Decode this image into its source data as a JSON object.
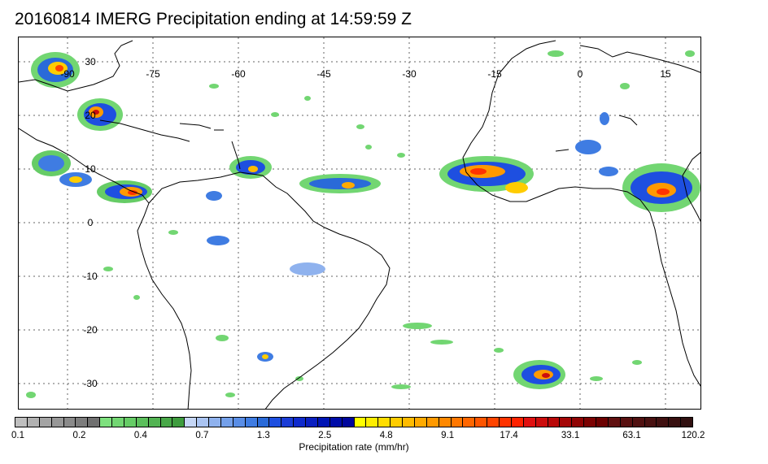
{
  "title": "20160814 IMERG Precipitation ending at 14:59:59 Z",
  "map": {
    "lon_labels": [
      "-90",
      "-75",
      "-60",
      "-45",
      "-30",
      "-15",
      "0",
      "15"
    ],
    "lon_values": [
      -90,
      -75,
      -60,
      -45,
      -30,
      -15,
      0,
      15
    ],
    "lat_labels": [
      "30",
      "20",
      "10",
      "0",
      "-10",
      "-20",
      "-30"
    ],
    "lat_values": [
      30,
      20,
      10,
      0,
      -10,
      -20,
      -30
    ],
    "grid": "dotted",
    "colors": {
      "land_outline": "#000000",
      "grid": "#666666"
    }
  },
  "colorbar": {
    "tick_labels": [
      "0.1",
      "0.2",
      "0.4",
      "0.7",
      "1.3",
      "2.5",
      "4.8",
      "9.1",
      "17.4",
      "33.1",
      "63.1",
      "120.2"
    ],
    "label": "Precipitation rate (mm/hr)",
    "colors": [
      "#bfbfbf",
      "#b1b1b1",
      "#a4a4a4",
      "#979797",
      "#8a8a8a",
      "#7d7d7d",
      "#707070",
      "#7ee07e",
      "#72d672",
      "#66cc66",
      "#5cbf5c",
      "#52b352",
      "#48a848",
      "#3e9c3e",
      "#c5d6f5",
      "#aac4f2",
      "#8fb2ee",
      "#74a0ea",
      "#5a8ee6",
      "#3f7ce2",
      "#2a6ad8",
      "#1e4fe0",
      "#1a3cd6",
      "#0f2acc",
      "#0a1fc0",
      "#0014b4",
      "#000ca8",
      "#00069c",
      "#ffff00",
      "#ffee00",
      "#ffdd00",
      "#ffcc00",
      "#ffbb00",
      "#ffaa00",
      "#ff9900",
      "#ff8800",
      "#ff7700",
      "#ff6600",
      "#ff5500",
      "#ff4400",
      "#ff3300",
      "#ff2200",
      "#e01010",
      "#cc0c0c",
      "#b80808",
      "#a40606",
      "#900404",
      "#7c0202",
      "#6c0000",
      "#601010",
      "#581010",
      "#501010",
      "#481010",
      "#401010",
      "#381010",
      "#301010"
    ]
  }
}
